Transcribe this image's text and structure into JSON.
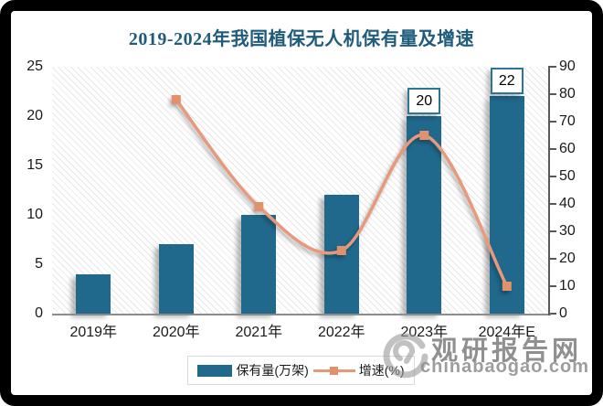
{
  "title": "2019-2024年我国植保无人机保有量及增速",
  "colors": {
    "bar": "#20698C",
    "line": "#E9997B",
    "marker": "#E3906C",
    "title": "#1F5B7A",
    "label_box_border": "#2E7596",
    "axis_line": "#595959",
    "frame": "#000000",
    "watermark": "#8F8F8F"
  },
  "chart_data": {
    "type": "combo-bar-line",
    "title": "2019-2024年我国植保无人机保有量及增速",
    "categories": [
      "2019年",
      "2020年",
      "2021年",
      "2022年",
      "2023年",
      "2024年E"
    ],
    "series": [
      {
        "name": "保有量(万架)",
        "type": "bar",
        "axis": "left",
        "values": [
          4,
          7,
          10,
          12,
          20,
          22
        ],
        "point_labels": [
          null,
          null,
          null,
          null,
          "20",
          "22"
        ],
        "color": "#20698C"
      },
      {
        "name": "增速(%)",
        "type": "line",
        "axis": "right",
        "values": [
          null,
          78,
          39,
          23,
          65,
          10
        ],
        "marker": "square",
        "color": "#E9997B"
      }
    ],
    "left_axis": {
      "min": 0,
      "max": 25,
      "step": 5,
      "ticks": [
        0,
        5,
        10,
        15,
        20,
        25
      ]
    },
    "right_axis": {
      "min": 0,
      "max": 90,
      "step": 10,
      "ticks": [
        0,
        10,
        20,
        30,
        40,
        50,
        60,
        70,
        80,
        90
      ]
    },
    "legend": {
      "position": "bottom",
      "items": [
        "保有量(万架)",
        "增速(%)"
      ]
    },
    "grid": false,
    "plot_background": "diagonal-hatch"
  },
  "watermark": {
    "brand": "观研报告网",
    "domain": "chinabaogao.com"
  }
}
